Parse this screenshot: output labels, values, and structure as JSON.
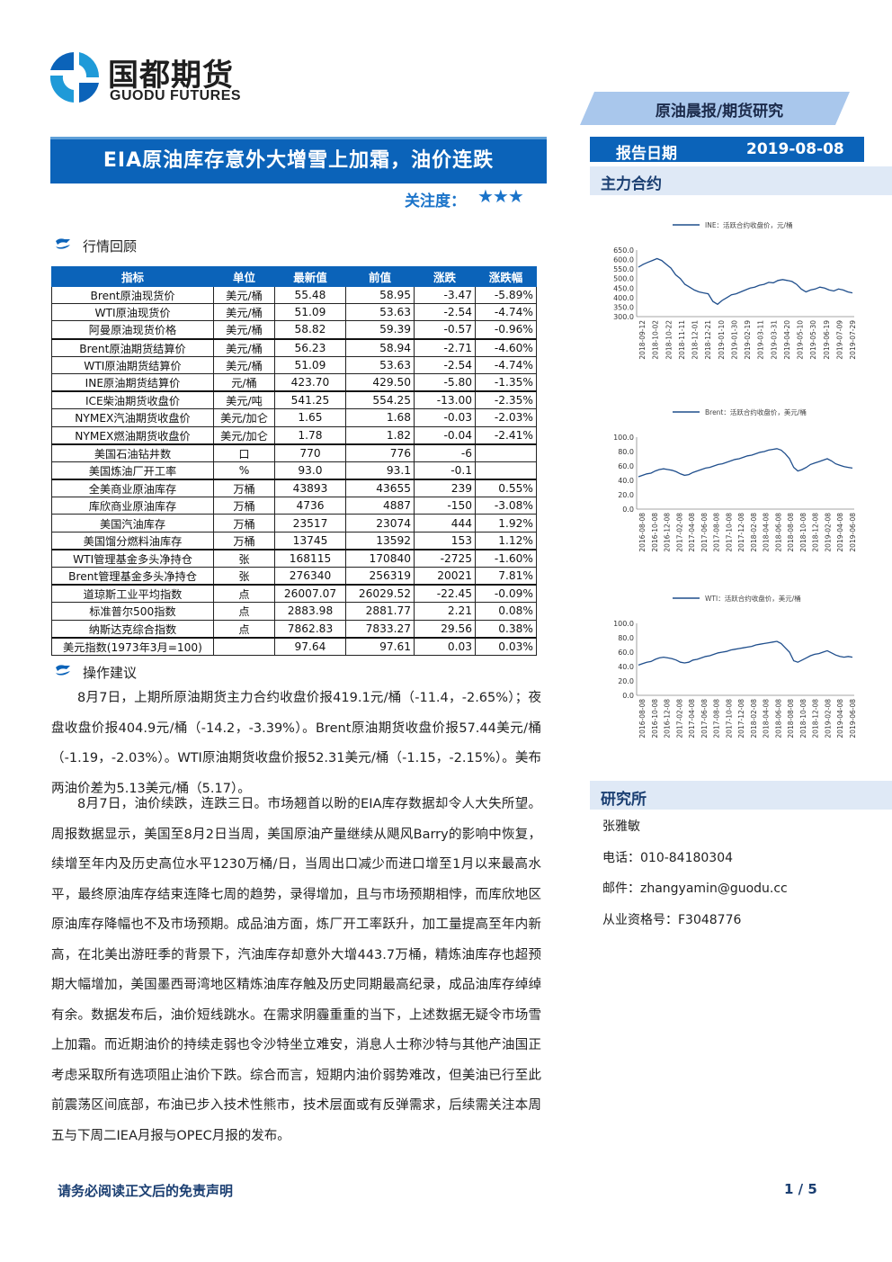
{
  "header": {
    "brand_cn": "国都期货",
    "brand_en": "GUODU FUTURES",
    "tag": "原油晨报/期货研究",
    "title": "EIA原油库存意外大增雪上加霜，油价连跌",
    "attention_label": "关注度：",
    "stars": "★★★",
    "report_date_label": "报告日期",
    "report_date": "2019-08-08",
    "main_contract_label": "主力合约"
  },
  "colors": {
    "brand_blue": "#0b63b9",
    "light_panel": "#dfe9f6",
    "line_blue": "#1f4e8c"
  },
  "market": {
    "heading": "行情回顾",
    "columns": [
      "指标",
      "单位",
      "最新值",
      "前值",
      "涨跌",
      "涨跌幅"
    ],
    "rows": [
      [
        "Brent原油现货价",
        "美元/桶",
        "55.48",
        "58.95",
        "-3.47",
        "-5.89%"
      ],
      [
        "WTI原油现货价",
        "美元/桶",
        "51.09",
        "53.63",
        "-2.54",
        "-4.74%"
      ],
      [
        "阿曼原油现货价格",
        "美元/桶",
        "58.82",
        "59.39",
        "-0.57",
        "-0.96%"
      ],
      [
        "Brent原油期货结算价",
        "美元/桶",
        "56.23",
        "58.94",
        "-2.71",
        "-4.60%"
      ],
      [
        "WTI原油期货结算价",
        "美元/桶",
        "51.09",
        "53.63",
        "-2.54",
        "-4.74%"
      ],
      [
        "INE原油期货结算价",
        "元/桶",
        "423.70",
        "429.50",
        "-5.80",
        "-1.35%"
      ],
      [
        "ICE柴油期货收盘价",
        "美元/吨",
        "541.25",
        "554.25",
        "-13.00",
        "-2.35%"
      ],
      [
        "NYMEX汽油期货收盘价",
        "美元/加仑",
        "1.65",
        "1.68",
        "-0.03",
        "-2.03%"
      ],
      [
        "NYMEX燃油期货收盘价",
        "美元/加仑",
        "1.78",
        "1.82",
        "-0.04",
        "-2.41%"
      ],
      [
        "美国石油钻井数",
        "口",
        "770",
        "776",
        "-6",
        ""
      ],
      [
        "美国炼油厂开工率",
        "%",
        "93.0",
        "93.1",
        "-0.1",
        ""
      ],
      [
        "全美商业原油库存",
        "万桶",
        "43893",
        "43655",
        "239",
        "0.55%"
      ],
      [
        "库欣商业原油库存",
        "万桶",
        "4736",
        "4887",
        "-150",
        "-3.08%"
      ],
      [
        "美国汽油库存",
        "万桶",
        "23517",
        "23074",
        "444",
        "1.92%"
      ],
      [
        "美国馏分燃料油库存",
        "万桶",
        "13745",
        "13592",
        "153",
        "1.12%"
      ],
      [
        "WTI管理基金多头净持仓",
        "张",
        "168115",
        "170840",
        "-2725",
        "-1.60%"
      ],
      [
        "Brent管理基金多头净持仓",
        "张",
        "276340",
        "256319",
        "20021",
        "7.81%"
      ],
      [
        "道琼斯工业平均指数",
        "点",
        "26007.07",
        "26029.52",
        "-22.45",
        "-0.09%"
      ],
      [
        "标准普尔500指数",
        "点",
        "2883.98",
        "2881.77",
        "2.21",
        "0.08%"
      ],
      [
        "纳斯达克综合指数",
        "点",
        "7862.83",
        "7833.27",
        "29.56",
        "0.38%"
      ],
      [
        "美元指数(1973年3月=100)",
        "",
        "97.64",
        "97.61",
        "0.03",
        "0.03%"
      ]
    ]
  },
  "advice": {
    "heading": "操作建议",
    "p1": "8月7日，上期所原油期货主力合约收盘价报419.1元/桶（-11.4，-2.65%）；夜盘收盘价报404.9元/桶（-14.2，-3.39%）。Brent原油期货收盘价报57.44美元/桶（-1.19，-2.03%）。WTI原油期货收盘价报52.31美元/桶（-1.15，-2.15%）。美布两油价差为5.13美元/桶（5.17）。",
    "p2": "8月7日，油价续跌，连跌三日。市场翘首以盼的EIA库存数据却令人大失所望。周报数据显示，美国至8月2日当周，美国原油产量继续从飓风Barry的影响中恢复，续增至年内及历史高位水平1230万桶/日，当周出口减少而进口增至1月以来最高水平，最终原油库存结束连降七周的趋势，录得增加，且与市场预期相悖，而库欣地区原油库存降幅也不及市场预期。成品油方面，炼厂开工率跃升，加工量提高至年内新高，在北美出游旺季的背景下，汽油库存却意外大增443.7万桶，精炼油库存也超预期大幅增加，美国墨西哥湾地区精炼油库存触及历史同期最高纪录，成品油库存绰绰有余。数据发布后，油价短线跳水。在需求阴霾重重的当下，上述数据无疑令市场雪上加霜。而近期油价的持续走弱也令沙特坐立难安，消息人士称沙特与其他产油国正考虑采取所有选项阻止油价下跌。综合而言，短期内油价弱势难改，但美油已行至此前震荡区间底部，布油已步入技术性熊市，技术层面或有反弹需求，后续需关注本周五与下周二IEA月报与OPEC月报的发布。"
  },
  "chart_data": [
    {
      "type": "line",
      "legend": "INE：活跃合约收盘价，元/桶",
      "ylim": [
        300,
        650
      ],
      "yticks": [
        "650.0",
        "600.0",
        "550.0",
        "500.0",
        "450.0",
        "400.0",
        "350.0",
        "300.0"
      ],
      "xticks": [
        "2018-09-12",
        "2018-10-02",
        "2018-10-22",
        "2018-11-11",
        "2018-12-01",
        "2018-12-21",
        "2019-01-10",
        "2019-01-30",
        "2019-02-19",
        "2019-03-11",
        "2019-03-31",
        "2019-04-20",
        "2019-05-10",
        "2019-05-30",
        "2019-06-19",
        "2019-07-09",
        "2019-07-29"
      ],
      "values": [
        560,
        575,
        585,
        595,
        605,
        595,
        575,
        555,
        520,
        500,
        470,
        455,
        440,
        430,
        425,
        420,
        380,
        365,
        385,
        400,
        415,
        420,
        430,
        440,
        450,
        455,
        465,
        470,
        480,
        478,
        490,
        495,
        490,
        485,
        470,
        445,
        430,
        440,
        445,
        455,
        450,
        440,
        435,
        445,
        440,
        430,
        425
      ]
    },
    {
      "type": "line",
      "legend": "Brent：活跃合约收盘价，美元/桶",
      "ylim": [
        0,
        100
      ],
      "yticks": [
        "100.0",
        "80.0",
        "60.0",
        "40.0",
        "20.0",
        "0.0"
      ],
      "xticks": [
        "2016-08-08",
        "2016-10-08",
        "2016-12-08",
        "2017-02-08",
        "2017-04-08",
        "2017-06-08",
        "2017-08-08",
        "2017-10-08",
        "2017-12-08",
        "2018-02-08",
        "2018-04-08",
        "2018-06-08",
        "2018-08-08",
        "2018-10-08",
        "2018-12-08",
        "2019-02-08",
        "2019-04-08",
        "2019-06-08"
      ],
      "values": [
        45,
        47,
        49,
        50,
        53,
        55,
        56,
        55,
        54,
        52,
        49,
        47,
        48,
        51,
        53,
        55,
        57,
        58,
        60,
        62,
        63,
        65,
        67,
        69,
        70,
        72,
        74,
        75,
        77,
        79,
        80,
        82,
        83,
        84,
        82,
        77,
        70,
        58,
        53,
        55,
        58,
        62,
        64,
        66,
        68,
        70,
        67,
        63,
        61,
        59,
        58,
        57
      ]
    },
    {
      "type": "line",
      "legend": "WTI：活跃合约收盘价，美元/桶",
      "ylim": [
        0,
        100
      ],
      "yticks": [
        "100.0",
        "80.0",
        "60.0",
        "40.0",
        "20.0",
        "0.0"
      ],
      "xticks": [
        "2016-08-08",
        "2016-10-08",
        "2016-12-08",
        "2017-02-08",
        "2017-04-08",
        "2017-06-08",
        "2017-08-08",
        "2017-10-08",
        "2017-12-08",
        "2018-02-08",
        "2018-04-08",
        "2018-06-08",
        "2018-08-08",
        "2018-10-08",
        "2018-12-08",
        "2019-02-08",
        "2019-04-08",
        "2019-06-08"
      ],
      "values": [
        42,
        44,
        46,
        47,
        50,
        52,
        53,
        52,
        51,
        49,
        46,
        45,
        46,
        49,
        50,
        52,
        54,
        55,
        57,
        59,
        60,
        61,
        63,
        64,
        65,
        66,
        67,
        68,
        70,
        71,
        72,
        73,
        74,
        75,
        72,
        66,
        60,
        48,
        46,
        49,
        52,
        55,
        57,
        58,
        60,
        62,
        59,
        56,
        54,
        53,
        54,
        53
      ]
    }
  ],
  "research": {
    "heading": "研究所",
    "name": "张雅敏",
    "phone": "电话：010-84180304",
    "email": "邮件：zhangyamin@guodu.cc",
    "license": "从业资格号：F3048776"
  },
  "footer": {
    "disclaimer": "请务必阅读正文后的免责声明",
    "page": "1 / 5"
  }
}
